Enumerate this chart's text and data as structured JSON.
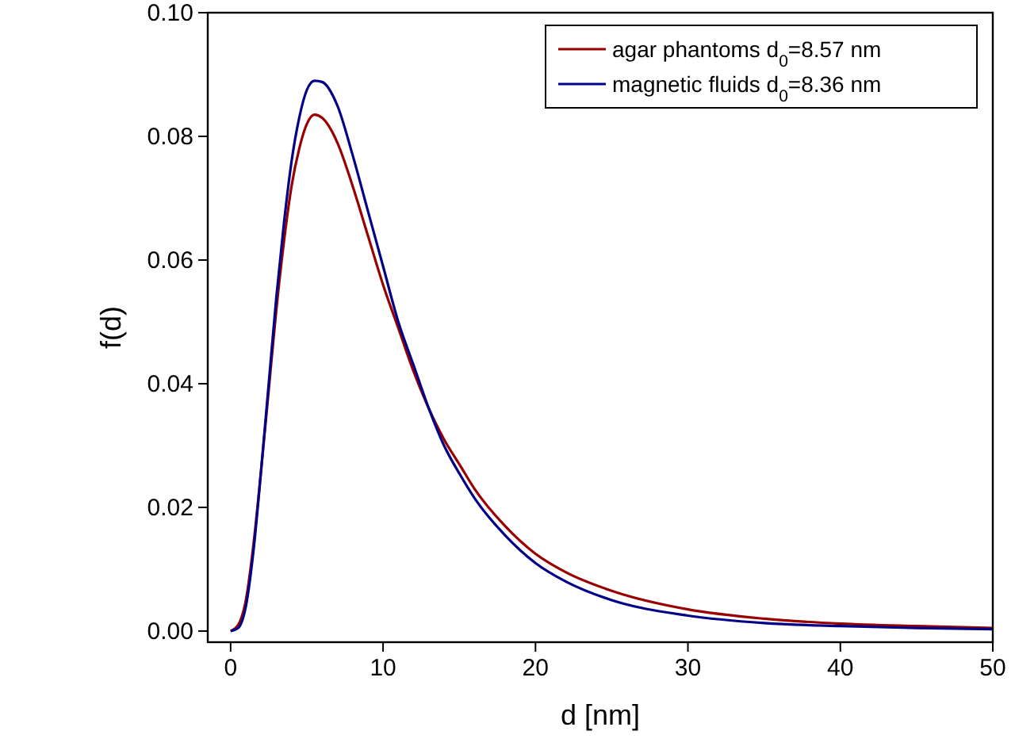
{
  "chart_data": {
    "type": "line",
    "xlabel": "d [nm]",
    "ylabel": "f(d)",
    "xlim": [
      -1.5,
      50
    ],
    "ylim": [
      -0.0018,
      0.1
    ],
    "xticks": [
      0,
      10,
      20,
      30,
      40,
      50
    ],
    "yticks": [
      {
        "value": 0,
        "label": "0.00"
      },
      {
        "value": 0.02,
        "label": "0.02"
      },
      {
        "value": 0.04,
        "label": "0.04"
      },
      {
        "value": 0.06,
        "label": "0.06"
      },
      {
        "value": 0.08,
        "label": "0.08"
      },
      {
        "value": 0.1,
        "label": "0.10"
      }
    ],
    "grid": false,
    "legend": "top right",
    "marker": "none",
    "line_style": "solid",
    "x": [
      0,
      0.5,
      1,
      1.5,
      2,
      2.5,
      3,
      3.5,
      4,
      4.5,
      5,
      5.5,
      6,
      7,
      8,
      9,
      10,
      11,
      12,
      13,
      14,
      15,
      16,
      18,
      20,
      22,
      25,
      30,
      35,
      40,
      45,
      50
    ],
    "series": [
      {
        "name": "agar phantoms d$_{0}$=8.57 nm",
        "color": "#990000",
        "values": [
          0,
          0.001,
          0.005,
          0.014,
          0.026,
          0.039,
          0.052,
          0.063,
          0.072,
          0.078,
          0.082,
          0.0835,
          0.083,
          0.079,
          0.072,
          0.064,
          0.056,
          0.049,
          0.042,
          0.036,
          0.031,
          0.027,
          0.023,
          0.017,
          0.0125,
          0.0095,
          0.0065,
          0.0035,
          0.002,
          0.0012,
          0.0008,
          0.0005
        ]
      },
      {
        "name": "magnetic fluids d$_{0}$=8.36 nm",
        "color": "#000088",
        "values": [
          0,
          0.0005,
          0.004,
          0.013,
          0.026,
          0.04,
          0.054,
          0.066,
          0.076,
          0.083,
          0.0875,
          0.089,
          0.0888,
          0.085,
          0.077,
          0.068,
          0.059,
          0.05,
          0.043,
          0.036,
          0.03,
          0.0255,
          0.0215,
          0.0155,
          0.011,
          0.008,
          0.005,
          0.0025,
          0.0013,
          0.0008,
          0.0005,
          0.0003
        ]
      }
    ]
  }
}
